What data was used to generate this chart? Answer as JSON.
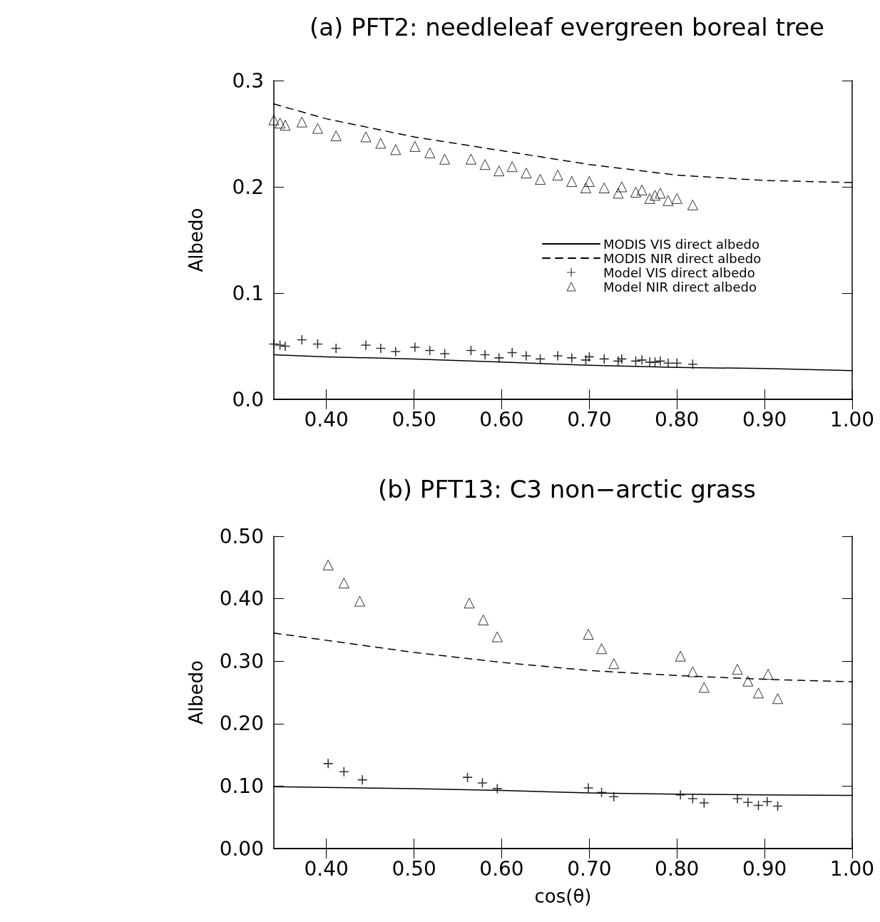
{
  "chart_data": [
    {
      "type": "line",
      "title": "(a) PFT2: needleleaf evergreen boreal tree",
      "ylabel": "Albedo",
      "legend": "center",
      "grid": false,
      "xlim": [
        0.34,
        1.0
      ],
      "xticks": [
        {
          "value": 0.4,
          "label": "0.40"
        },
        {
          "value": 0.5,
          "label": "0.50"
        },
        {
          "value": 0.6,
          "label": "0.60"
        },
        {
          "value": 0.7,
          "label": "0.70"
        },
        {
          "value": 0.8,
          "label": "0.80"
        },
        {
          "value": 0.9,
          "label": "0.90"
        },
        {
          "value": 1.0,
          "label": "1.00"
        }
      ],
      "ylim": [
        0,
        0.3
      ],
      "yticks": [
        {
          "value": 0,
          "label": "0.0"
        },
        {
          "value": 0.1,
          "label": "0.1"
        },
        {
          "value": 0.2,
          "label": "0.2"
        },
        {
          "value": 0.3,
          "label": "0.3"
        }
      ],
      "series": [
        {
          "name": "MODIS VIS direct albedo",
          "line_style": "solid",
          "marker": "none",
          "color": "#000000",
          "x": [
            0.34,
            0.4,
            0.5,
            0.6,
            0.7,
            0.8,
            0.9,
            1.0
          ],
          "values": [
            0.042,
            0.04,
            0.038,
            0.035,
            0.032,
            0.03,
            0.029,
            0.027
          ]
        },
        {
          "name": "MODIS NIR direct albedo",
          "line_style": "dashed",
          "marker": "none",
          "color": "#000000",
          "x": [
            0.34,
            0.4,
            0.5,
            0.6,
            0.7,
            0.8,
            0.9,
            1.0
          ],
          "values": [
            0.278,
            0.264,
            0.247,
            0.234,
            0.221,
            0.211,
            0.206,
            0.204
          ]
        },
        {
          "name": "Model VIS direct albedo",
          "type": "scatter",
          "marker": "cross",
          "color": "#000000",
          "x": [
            0.34,
            0.347,
            0.353,
            0.372,
            0.39,
            0.411,
            0.445,
            0.462,
            0.479,
            0.501,
            0.518,
            0.535,
            0.565,
            0.581,
            0.597,
            0.612,
            0.628,
            0.644,
            0.664,
            0.68,
            0.696,
            0.7,
            0.717,
            0.733,
            0.737,
            0.753,
            0.769,
            0.76,
            0.775,
            0.79,
            0.781,
            0.8,
            0.818
          ],
          "values": [
            0.052,
            0.051,
            0.05,
            0.056,
            0.052,
            0.048,
            0.051,
            0.048,
            0.045,
            0.049,
            0.046,
            0.043,
            0.046,
            0.042,
            0.039,
            0.044,
            0.041,
            0.038,
            0.041,
            0.039,
            0.037,
            0.04,
            0.038,
            0.036,
            0.038,
            0.036,
            0.035,
            0.037,
            0.035,
            0.034,
            0.036,
            0.034,
            0.033
          ]
        },
        {
          "name": "Model NIR direct albedo",
          "type": "scatter",
          "marker": "triangle",
          "color": "#000000",
          "x": [
            0.34,
            0.347,
            0.353,
            0.372,
            0.39,
            0.411,
            0.445,
            0.462,
            0.479,
            0.501,
            0.518,
            0.535,
            0.565,
            0.581,
            0.597,
            0.612,
            0.628,
            0.644,
            0.664,
            0.68,
            0.696,
            0.7,
            0.717,
            0.733,
            0.737,
            0.753,
            0.769,
            0.76,
            0.775,
            0.79,
            0.781,
            0.8,
            0.818
          ],
          "values": [
            0.263,
            0.26,
            0.258,
            0.261,
            0.255,
            0.248,
            0.247,
            0.241,
            0.235,
            0.238,
            0.232,
            0.226,
            0.226,
            0.221,
            0.215,
            0.219,
            0.213,
            0.207,
            0.211,
            0.205,
            0.199,
            0.205,
            0.199,
            0.194,
            0.2,
            0.195,
            0.189,
            0.197,
            0.192,
            0.187,
            0.194,
            0.189,
            0.183
          ]
        }
      ]
    },
    {
      "type": "line",
      "title": "(b) PFT13: C3 non−arctic grass",
      "xlabel": "cos(θ)",
      "ylabel": "Albedo",
      "legend": false,
      "grid": false,
      "xlim": [
        0.34,
        1.0
      ],
      "xticks": [
        {
          "value": 0.4,
          "label": "0.40"
        },
        {
          "value": 0.5,
          "label": "0.50"
        },
        {
          "value": 0.6,
          "label": "0.60"
        },
        {
          "value": 0.7,
          "label": "0.70"
        },
        {
          "value": 0.8,
          "label": "0.80"
        },
        {
          "value": 0.9,
          "label": "0.90"
        },
        {
          "value": 1.0,
          "label": "1.00"
        }
      ],
      "ylim": [
        0,
        0.5
      ],
      "yticks": [
        {
          "value": 0,
          "label": "0.00"
        },
        {
          "value": 0.1,
          "label": "0.10"
        },
        {
          "value": 0.2,
          "label": "0.20"
        },
        {
          "value": 0.3,
          "label": "0.30"
        },
        {
          "value": 0.4,
          "label": "0.40"
        },
        {
          "value": 0.5,
          "label": "0.50"
        }
      ],
      "series": [
        {
          "line_style": "solid",
          "marker": "none",
          "color": "#000000",
          "x": [
            0.34,
            0.5,
            0.6,
            0.7,
            0.8,
            0.9,
            1.0
          ],
          "values": [
            0.099,
            0.096,
            0.093,
            0.089,
            0.087,
            0.086,
            0.085
          ]
        },
        {
          "line_style": "dashed",
          "marker": "none",
          "color": "#000000",
          "x": [
            0.34,
            0.5,
            0.6,
            0.7,
            0.8,
            0.9,
            1.0
          ],
          "values": [
            0.345,
            0.314,
            0.298,
            0.285,
            0.277,
            0.271,
            0.267
          ]
        },
        {
          "type": "scatter",
          "marker": "cross",
          "color": "#000000",
          "x": [
            0.402,
            0.42,
            0.441,
            0.561,
            0.578,
            0.595,
            0.699,
            0.714,
            0.728,
            0.804,
            0.818,
            0.831,
            0.869,
            0.881,
            0.893,
            0.903,
            0.915
          ],
          "values": [
            0.136,
            0.123,
            0.11,
            0.114,
            0.105,
            0.096,
            0.097,
            0.09,
            0.083,
            0.086,
            0.08,
            0.073,
            0.08,
            0.074,
            0.069,
            0.075,
            0.068
          ]
        },
        {
          "type": "scatter",
          "marker": "triangle",
          "color": "#000000",
          "x": [
            0.402,
            0.42,
            0.438,
            0.563,
            0.579,
            0.595,
            0.699,
            0.714,
            0.728,
            0.804,
            0.818,
            0.831,
            0.869,
            0.881,
            0.893,
            0.904,
            0.915
          ],
          "values": [
            0.454,
            0.425,
            0.396,
            0.393,
            0.366,
            0.339,
            0.343,
            0.32,
            0.296,
            0.308,
            0.283,
            0.258,
            0.287,
            0.268,
            0.249,
            0.279,
            0.24
          ]
        }
      ]
    }
  ]
}
